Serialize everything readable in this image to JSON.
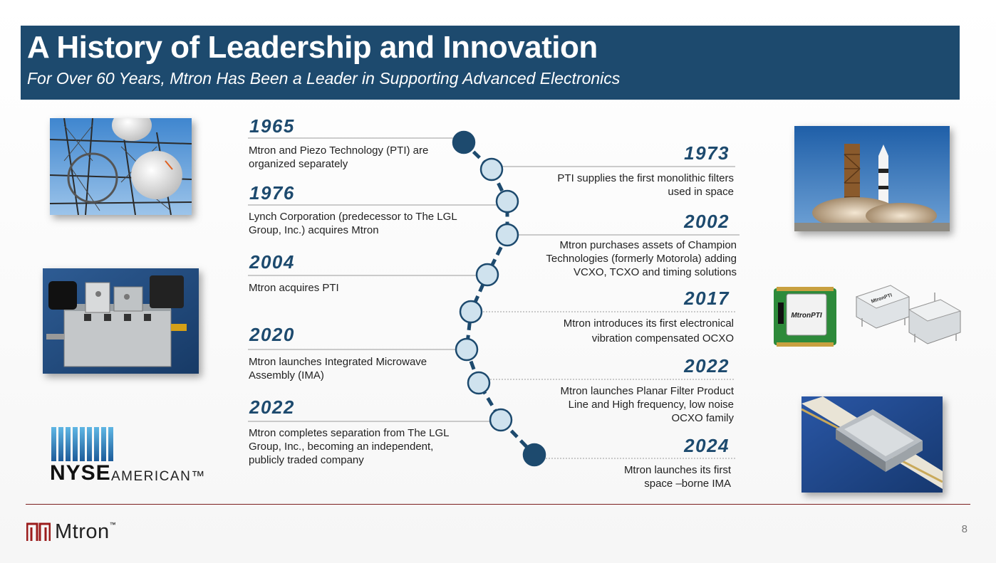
{
  "header": {
    "title": "A History of Leadership and Innovation",
    "subtitle": "For Over 60 Years, Mtron Has Been a Leader in Supporting Advanced Electronics"
  },
  "timeline_left": [
    {
      "year": "1965",
      "text": "Mtron and Piezo Technology (PTI) are organized separately"
    },
    {
      "year": "1976",
      "text": "Lynch Corporation (predecessor to The LGL Group, Inc.) acquires Mtron"
    },
    {
      "year": "2004",
      "text": "Mtron acquires PTI"
    },
    {
      "year": "2020",
      "text": "Mtron launches Integrated Microwave Assembly (IMA)"
    },
    {
      "year": "2022",
      "text": "Mtron completes separation from The LGL Group, Inc., becoming an independent, publicly traded company"
    }
  ],
  "timeline_right": [
    {
      "year": "1973",
      "text": "PTI supplies the first monolithic filters used in space"
    },
    {
      "year": "2002",
      "text": "Mtron purchases assets of Champion Technologies (formerly Motorola) adding VCXO, TCXO and timing solutions"
    },
    {
      "year": "2017",
      "text": "Mtron introduces its first electronical vibration compensated OCXO"
    },
    {
      "year": "2022",
      "text": "Mtron launches Planar Filter Product Line and High frequency, low noise OCXO family"
    },
    {
      "year": "2024",
      "text": "Mtron launches its first space –borne IMA"
    }
  ],
  "nyse": {
    "word": "NYSE",
    "sub": "AMERICAN™"
  },
  "footer": {
    "brand": "Mtron",
    "tm": "™",
    "page": "8"
  },
  "chip_label": "MtronPTI",
  "colors": {
    "navy": "#1d4a6e",
    "node_light": "#cfe2ee",
    "accent_red": "#9b1c1c"
  }
}
